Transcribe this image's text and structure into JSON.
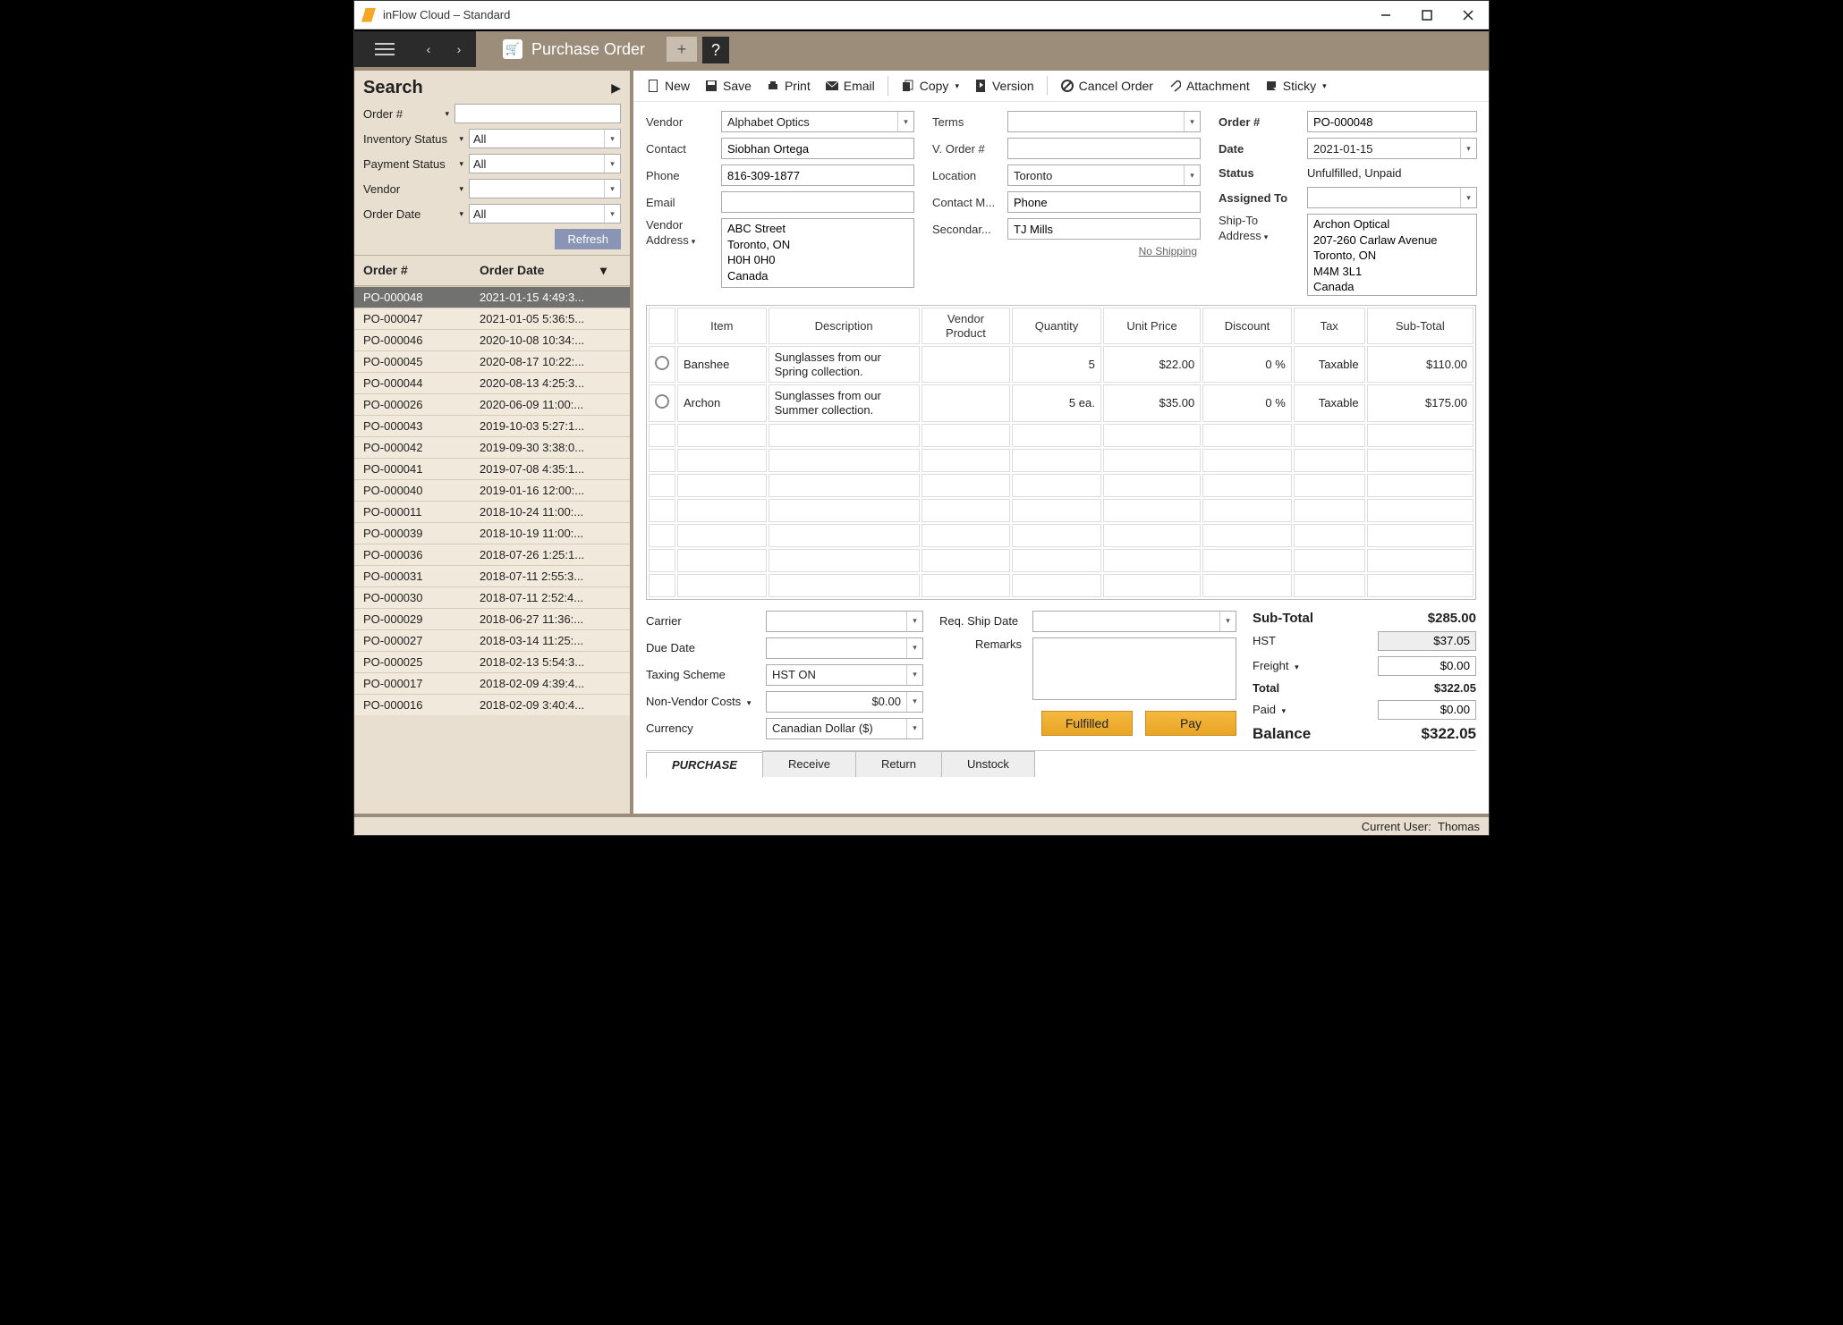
{
  "window": {
    "title": "inFlow Cloud – Standard"
  },
  "tab": {
    "label": "Purchase Order"
  },
  "search": {
    "title": "Search",
    "filters": {
      "order_no": {
        "label": "Order #",
        "value": ""
      },
      "inventory_status": {
        "label": "Inventory Status",
        "value": "All"
      },
      "payment_status": {
        "label": "Payment Status",
        "value": "All"
      },
      "vendor": {
        "label": "Vendor",
        "value": ""
      },
      "order_date": {
        "label": "Order Date",
        "value": "All"
      }
    },
    "refresh_label": "Refresh",
    "list_headers": {
      "order": "Order #",
      "date": "Order Date"
    },
    "rows": [
      {
        "order": "PO-000048",
        "date": "2021-01-15 4:49:3...",
        "selected": true
      },
      {
        "order": "PO-000047",
        "date": "2021-01-05 5:36:5..."
      },
      {
        "order": "PO-000046",
        "date": "2020-10-08 10:34:..."
      },
      {
        "order": "PO-000045",
        "date": "2020-08-17 10:22:..."
      },
      {
        "order": "PO-000044",
        "date": "2020-08-13 4:25:3..."
      },
      {
        "order": "PO-000026",
        "date": "2020-06-09 11:00:..."
      },
      {
        "order": "PO-000043",
        "date": "2019-10-03 5:27:1..."
      },
      {
        "order": "PO-000042",
        "date": "2019-09-30 3:38:0..."
      },
      {
        "order": "PO-000041",
        "date": "2019-07-08 4:35:1..."
      },
      {
        "order": "PO-000040",
        "date": "2019-01-16 12:00:..."
      },
      {
        "order": "PO-000011",
        "date": "2018-10-24 11:00:..."
      },
      {
        "order": "PO-000039",
        "date": "2018-10-19 11:00:..."
      },
      {
        "order": "PO-000036",
        "date": "2018-07-26 1:25:1..."
      },
      {
        "order": "PO-000031",
        "date": "2018-07-11 2:55:3..."
      },
      {
        "order": "PO-000030",
        "date": "2018-07-11 2:52:4..."
      },
      {
        "order": "PO-000029",
        "date": "2018-06-27 11:36:..."
      },
      {
        "order": "PO-000027",
        "date": "2018-03-14 11:25:..."
      },
      {
        "order": "PO-000025",
        "date": "2018-02-13 5:54:3..."
      },
      {
        "order": "PO-000017",
        "date": "2018-02-09 4:39:4..."
      },
      {
        "order": "PO-000016",
        "date": "2018-02-09 3:40:4..."
      }
    ]
  },
  "toolbar": {
    "new": "New",
    "save": "Save",
    "print": "Print",
    "email": "Email",
    "copy": "Copy",
    "version": "Version",
    "cancel": "Cancel Order",
    "attachment": "Attachment",
    "sticky": "Sticky"
  },
  "form": {
    "left": {
      "vendor": {
        "label": "Vendor",
        "value": "Alphabet Optics"
      },
      "contact": {
        "label": "Contact",
        "value": "Siobhan Ortega"
      },
      "phone": {
        "label": "Phone",
        "value": "816-309-1877"
      },
      "email": {
        "label": "Email",
        "value": ""
      },
      "vendor_address": {
        "label": "Vendor Address",
        "value": "ABC Street\nToronto, ON\nH0H 0H0\nCanada"
      }
    },
    "mid": {
      "terms": {
        "label": "Terms",
        "value": ""
      },
      "v_order": {
        "label": "V. Order #",
        "value": ""
      },
      "location": {
        "label": "Location",
        "value": "Toronto"
      },
      "contact_method": {
        "label": "Contact M...",
        "value": "Phone"
      },
      "secondary": {
        "label": "Secondar...",
        "value": "TJ Mills"
      },
      "no_shipping": "No Shipping",
      "ship_to": {
        "label": "Ship-To Address",
        "value": "Archon Optical\n207-260 Carlaw Avenue\nToronto, ON\nM4M 3L1\nCanada"
      }
    },
    "right": {
      "order_no": {
        "label": "Order #",
        "value": "PO-000048"
      },
      "date": {
        "label": "Date",
        "value": "2021-01-15"
      },
      "status": {
        "label": "Status",
        "value": "Unfulfilled, Unpaid"
      },
      "assigned": {
        "label": "Assigned To",
        "value": ""
      }
    }
  },
  "items": {
    "headers": {
      "item": "Item",
      "desc": "Description",
      "vp": "Vendor Product",
      "qty": "Quantity",
      "price": "Unit Price",
      "disc": "Discount",
      "tax": "Tax",
      "sub": "Sub-Total"
    },
    "rows": [
      {
        "item": "Banshee",
        "desc": "Sunglasses from our Spring collection.",
        "vp": "",
        "qty": "5",
        "price": "$22.00",
        "disc": "0 %",
        "tax": "Taxable",
        "sub": "$110.00"
      },
      {
        "item": "Archon",
        "desc": "Sunglasses from our Summer collection.",
        "vp": "",
        "qty": "5 ea.",
        "price": "$35.00",
        "disc": "0 %",
        "tax": "Taxable",
        "sub": "$175.00"
      }
    ],
    "empty_rows": 7
  },
  "bottom": {
    "carrier": {
      "label": "Carrier",
      "value": ""
    },
    "due_date": {
      "label": "Due Date",
      "value": ""
    },
    "taxing": {
      "label": "Taxing Scheme",
      "value": "HST ON"
    },
    "non_vendor": {
      "label": "Non-Vendor Costs",
      "value": "$0.00"
    },
    "currency": {
      "label": "Currency",
      "value": "Canadian Dollar ($)"
    },
    "req_ship": {
      "label": "Req. Ship Date",
      "value": ""
    },
    "remarks": {
      "label": "Remarks",
      "value": ""
    },
    "fulfilled_btn": "Fulfilled",
    "pay_btn": "Pay",
    "totals": {
      "subtotal": {
        "label": "Sub-Total",
        "value": "$285.00"
      },
      "hst": {
        "label": "HST",
        "value": "$37.05"
      },
      "freight": {
        "label": "Freight",
        "value": "$0.00"
      },
      "total": {
        "label": "Total",
        "value": "$322.05"
      },
      "paid": {
        "label": "Paid",
        "value": "$0.00"
      },
      "balance": {
        "label": "Balance",
        "value": "$322.05"
      }
    }
  },
  "bottom_tabs": {
    "purchase": "PURCHASE",
    "receive": "Receive",
    "return": "Return",
    "unstock": "Unstock"
  },
  "status": {
    "current_user_label": "Current User:",
    "current_user": "Thomas"
  }
}
